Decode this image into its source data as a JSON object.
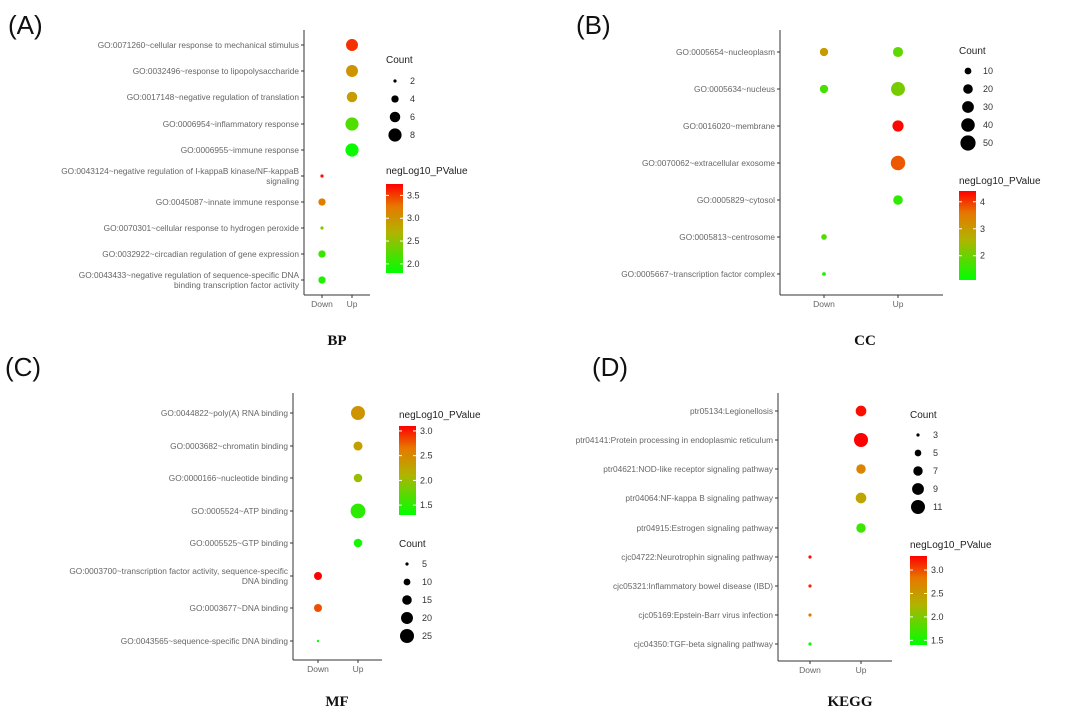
{
  "chart_data": [
    {
      "type": "scatter",
      "panel_label": "(A)",
      "title": "BP",
      "x_categories": [
        "Down",
        "Up"
      ],
      "size_legend_title": "Count",
      "size_breaks": [
        2,
        4,
        6,
        8
      ],
      "color_legend_title": "negLog10_PValue",
      "color_breaks": [
        3.5,
        3.0,
        2.5,
        2.0
      ],
      "color_range": [
        1.8,
        3.75
      ],
      "color_low": "#00ff00",
      "color_high": "#ff0000",
      "legend_order": "size-first",
      "terms": [
        "GO:0071260~cellular response to mechanical stimulus",
        "GO:0032496~response to lipopolysaccharide",
        "GO:0017148~negative regulation of translation",
        "GO:0006954~inflammatory response",
        "GO:0006955~immune response",
        "GO:0043124~negative regulation of I-kappaB kinase/NF-kappaB\nsignaling",
        "GO:0045087~innate immune response",
        "GO:0070301~cellular response to hydrogen peroxide",
        "GO:0032922~circadian regulation of gene expression",
        "GO:0043433~negative regulation of sequence-specific DNA\nbinding transcription factor activity"
      ],
      "points": [
        {
          "term": 0,
          "x": "Up",
          "count": 7,
          "negLog10_PValue": 3.55
        },
        {
          "term": 1,
          "x": "Up",
          "count": 7,
          "negLog10_PValue": 3.0
        },
        {
          "term": 2,
          "x": "Up",
          "count": 6,
          "negLog10_PValue": 2.9
        },
        {
          "term": 3,
          "x": "Up",
          "count": 8,
          "negLog10_PValue": 2.2
        },
        {
          "term": 4,
          "x": "Up",
          "count": 8,
          "negLog10_PValue": 1.85
        },
        {
          "term": 5,
          "x": "Down",
          "count": 2,
          "negLog10_PValue": 3.7
        },
        {
          "term": 6,
          "x": "Down",
          "count": 4,
          "negLog10_PValue": 3.2
        },
        {
          "term": 7,
          "x": "Down",
          "count": 2,
          "negLog10_PValue": 2.45
        },
        {
          "term": 8,
          "x": "Down",
          "count": 4,
          "negLog10_PValue": 2.1
        },
        {
          "term": 9,
          "x": "Down",
          "count": 4,
          "negLog10_PValue": 1.95
        }
      ]
    },
    {
      "type": "scatter",
      "panel_label": "(B)",
      "title": "CC",
      "x_categories": [
        "Down",
        "Up"
      ],
      "size_legend_title": "Count",
      "size_breaks": [
        10,
        20,
        30,
        40,
        50
      ],
      "color_legend_title": "negLog10_PValue",
      "color_breaks": [
        4,
        3,
        2
      ],
      "color_range": [
        1.1,
        4.4
      ],
      "color_low": "#00ff00",
      "color_high": "#ff0000",
      "legend_order": "size-first",
      "terms": [
        "GO:0005654~nucleoplasm",
        "GO:0005634~nucleus",
        "GO:0016020~membrane",
        "GO:0070062~extracellular exosome",
        "GO:0005829~cytosol",
        "GO:0005813~centrosome",
        "GO:0005667~transcription factor complex"
      ],
      "points": [
        {
          "term": 0,
          "x": "Down",
          "count": 15,
          "negLog10_PValue": 3.0
        },
        {
          "term": 0,
          "x": "Up",
          "count": 22,
          "negLog10_PValue": 1.9
        },
        {
          "term": 1,
          "x": "Down",
          "count": 15,
          "negLog10_PValue": 1.7
        },
        {
          "term": 1,
          "x": "Up",
          "count": 42,
          "negLog10_PValue": 2.1
        },
        {
          "term": 2,
          "x": "Up",
          "count": 27,
          "negLog10_PValue": 4.35
        },
        {
          "term": 3,
          "x": "Up",
          "count": 45,
          "negLog10_PValue": 3.8
        },
        {
          "term": 4,
          "x": "Up",
          "count": 20,
          "negLog10_PValue": 1.5
        },
        {
          "term": 5,
          "x": "Down",
          "count": 7,
          "negLog10_PValue": 1.8
        },
        {
          "term": 6,
          "x": "Down",
          "count": 3,
          "negLog10_PValue": 1.3
        }
      ]
    },
    {
      "type": "scatter",
      "panel_label": "(C)",
      "title": "MF",
      "x_categories": [
        "Down",
        "Up"
      ],
      "size_legend_title": "Count",
      "size_breaks": [
        5,
        10,
        15,
        20,
        25
      ],
      "color_legend_title": "negLog10_PValue",
      "color_breaks": [
        3.0,
        2.5,
        2.0,
        1.5
      ],
      "color_range": [
        1.3,
        3.1
      ],
      "color_low": "#00ff00",
      "color_high": "#ff0000",
      "legend_order": "color-first",
      "terms": [
        "GO:0044822~poly(A) RNA binding",
        "GO:0003682~chromatin binding",
        "GO:0000166~nucleotide binding",
        "GO:0005524~ATP binding",
        "GO:0005525~GTP binding",
        "GO:0003700~transcription factor activity, sequence-specific\nDNA binding",
        "GO:0003677~DNA binding",
        "GO:0043565~sequence-specific DNA binding"
      ],
      "points": [
        {
          "term": 0,
          "x": "Up",
          "count": 25,
          "negLog10_PValue": 2.4
        },
        {
          "term": 1,
          "x": "Up",
          "count": 14,
          "negLog10_PValue": 2.3
        },
        {
          "term": 2,
          "x": "Up",
          "count": 13,
          "negLog10_PValue": 2.0
        },
        {
          "term": 3,
          "x": "Up",
          "count": 27,
          "negLog10_PValue": 1.5
        },
        {
          "term": 4,
          "x": "Up",
          "count": 13,
          "negLog10_PValue": 1.4
        },
        {
          "term": 5,
          "x": "Down",
          "count": 12,
          "negLog10_PValue": 3.1
        },
        {
          "term": 6,
          "x": "Down",
          "count": 12,
          "negLog10_PValue": 2.8
        },
        {
          "term": 7,
          "x": "Down",
          "count": 3,
          "negLog10_PValue": 1.35
        }
      ]
    },
    {
      "type": "scatter",
      "panel_label": "(D)",
      "title": "KEGG",
      "x_categories": [
        "Down",
        "Up"
      ],
      "size_legend_title": "Count",
      "size_breaks": [
        3,
        5,
        7,
        9,
        11
      ],
      "color_legend_title": "negLog10_PValue",
      "color_breaks": [
        3.0,
        2.5,
        2.0,
        1.5
      ],
      "color_range": [
        1.4,
        3.3
      ],
      "color_low": "#00ff00",
      "color_high": "#ff0000",
      "legend_order": "size-first",
      "terms": [
        "ptr05134:Legionellosis",
        "ptr04141:Protein processing in endoplasmic reticulum",
        "ptr04621:NOD-like receptor signaling pathway",
        "ptr04064:NF-kappa B signaling pathway",
        "ptr04915:Estrogen signaling pathway",
        "cjc04722:Neurotrophin signaling pathway",
        "cjc05321:Inflammatory bowel disease (IBD)",
        "cjc05169:Epstein-Barr virus infection",
        "cjc04350:TGF-beta signaling pathway"
      ],
      "points": [
        {
          "term": 0,
          "x": "Up",
          "count": 8,
          "negLog10_PValue": 3.25
        },
        {
          "term": 1,
          "x": "Up",
          "count": 11,
          "negLog10_PValue": 3.3
        },
        {
          "term": 2,
          "x": "Up",
          "count": 7,
          "negLog10_PValue": 2.7
        },
        {
          "term": 3,
          "x": "Up",
          "count": 8,
          "negLog10_PValue": 2.4
        },
        {
          "term": 4,
          "x": "Up",
          "count": 7,
          "negLog10_PValue": 1.7
        },
        {
          "term": 5,
          "x": "Down",
          "count": 3,
          "negLog10_PValue": 3.25
        },
        {
          "term": 6,
          "x": "Down",
          "count": 3,
          "negLog10_PValue": 3.15
        },
        {
          "term": 7,
          "x": "Down",
          "count": 3,
          "negLog10_PValue": 2.8
        },
        {
          "term": 8,
          "x": "Down",
          "count": 3,
          "negLog10_PValue": 1.45
        }
      ]
    }
  ]
}
